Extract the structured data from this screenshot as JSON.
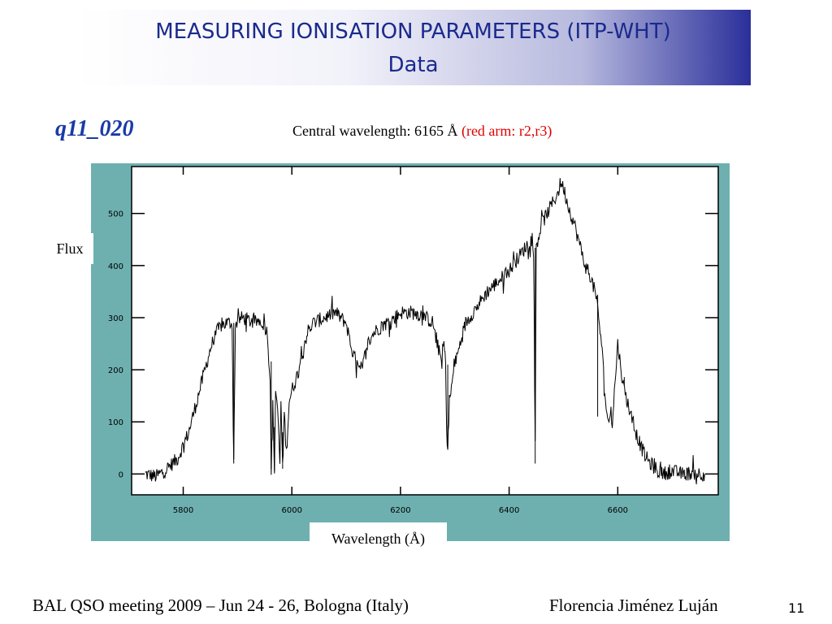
{
  "slide": {
    "title_line1": "MEASURING IONISATION PARAMETERS (ITP-WHT)",
    "title_line2": "Data",
    "object_label": "q11_020",
    "central_wavelength": "Central wavelength: 6165 Å",
    "red_arm": "(red arm: r2,r3)",
    "footer_left": "BAL QSO meeting 2009 – Jun 24 - 26, Bologna (Italy)",
    "footer_right": "Florencia Jiménez Luján",
    "page_number": "11"
  },
  "chart_data": {
    "type": "line",
    "xlabel": "Wavelength (Å)",
    "ylabel": "Flux",
    "xlim": [
      5705,
      6785
    ],
    "ylim": [
      -40,
      590
    ],
    "x_ticks": [
      5800,
      6000,
      6200,
      6400,
      6600
    ],
    "y_ticks": [
      0,
      100,
      200,
      300,
      400,
      500
    ],
    "series": [
      {
        "x": [
          5730,
          5750,
          5770,
          5790,
          5800,
          5810,
          5820,
          5830,
          5840,
          5850,
          5860,
          5870,
          5880,
          5890,
          5893,
          5896,
          5900,
          5910,
          5930,
          5940,
          5950,
          5955,
          5960,
          5962,
          5965,
          5968,
          5970,
          5975,
          5978,
          5980,
          5983,
          5986,
          5990,
          5995,
          6000,
          6010,
          6020,
          6030,
          6040,
          6060,
          6080,
          6100,
          6110,
          6120,
          6125,
          6130,
          6135,
          6140,
          6150,
          6160,
          6175,
          6190,
          6200,
          6220,
          6240,
          6260,
          6265,
          6270,
          6275,
          6280,
          6283,
          6285,
          6287,
          6290,
          6300,
          6320,
          6340,
          6360,
          6380,
          6400,
          6420,
          6440,
          6445,
          6448,
          6450,
          6455,
          6460,
          6470,
          6480,
          6490,
          6495,
          6500,
          6505,
          6510,
          6520,
          6530,
          6540,
          6550,
          6555,
          6560,
          6565,
          6570,
          6580,
          6590,
          6600,
          6610,
          6620,
          6630,
          6640,
          6650,
          6660,
          6670,
          6680,
          6700,
          6720,
          6740,
          6760
        ],
        "y": [
          0,
          -5,
          10,
          30,
          55,
          80,
          120,
          160,
          200,
          240,
          270,
          285,
          290,
          290,
          20,
          285,
          295,
          300,
          290,
          295,
          285,
          270,
          180,
          10,
          130,
          5,
          160,
          100,
          20,
          140,
          10,
          120,
          40,
          140,
          160,
          190,
          240,
          275,
          290,
          300,
          310,
          290,
          240,
          210,
          195,
          205,
          230,
          250,
          270,
          280,
          290,
          300,
          310,
          310,
          305,
          290,
          260,
          240,
          220,
          250,
          210,
          80,
          50,
          140,
          210,
          290,
          320,
          350,
          370,
          390,
          420,
          450,
          430,
          50,
          440,
          460,
          480,
          500,
          520,
          540,
          560,
          550,
          530,
          510,
          480,
          440,
          400,
          380,
          360,
          340,
          300,
          250,
          110,
          100,
          250,
          170,
          130,
          90,
          60,
          35,
          20,
          10,
          0,
          5,
          0,
          2,
          0
        ]
      }
    ],
    "absorption_lines": [
      5893,
      5962,
      5968,
      5983,
      6287,
      6448,
      6563,
      6612
    ]
  }
}
